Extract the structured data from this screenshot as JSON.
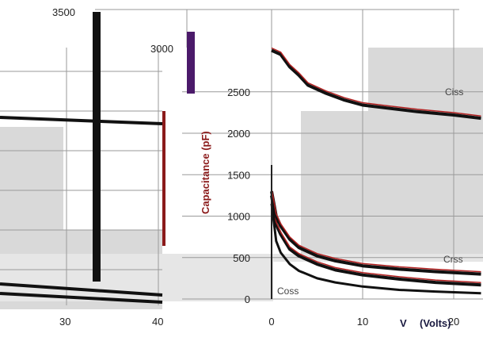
{
  "chart_data": [
    {
      "type": "line",
      "x": [
        0,
        20
      ],
      "x_visible_ticks": [
        "30",
        "40"
      ],
      "y_visible_ticks": [
        "3500",
        "3000"
      ],
      "xlabel": "",
      "ylabel": "",
      "title": "",
      "series": [
        {
          "values_at_x30": 2100,
          "values_at_x40": 2050
        },
        {
          "values_at_x30": 330,
          "values_at_x40": 60
        },
        {
          "values_at_x30": 270,
          "values_at_x40": 20
        }
      ]
    },
    {
      "type": "line",
      "title": "",
      "ylabel": "Capacitance (pF)",
      "xlabel": "V",
      "xlabel_unit": "(Volts)",
      "xlim": [
        0,
        23
      ],
      "ylim": [
        0,
        3000
      ],
      "x_ticks": [
        "0",
        "10",
        "20"
      ],
      "y_ticks": [
        "0",
        "500",
        "1000",
        "1500",
        "2000",
        "2500"
      ],
      "grid": true,
      "series": [
        {
          "name": "Ciss",
          "x": [
            0,
            1,
            2,
            3,
            4,
            6,
            8,
            10,
            13,
            16,
            20,
            23
          ],
          "values": [
            3000,
            2950,
            2800,
            2700,
            2580,
            2480,
            2400,
            2340,
            2300,
            2260,
            2220,
            2180
          ]
        },
        {
          "name": "Crss",
          "x": [
            0,
            0.5,
            1,
            2,
            3,
            5,
            7,
            10,
            14,
            18,
            23
          ],
          "values": [
            1250,
            900,
            780,
            600,
            520,
            420,
            350,
            290,
            240,
            200,
            170
          ]
        },
        {
          "name": "Coss",
          "x": [
            0,
            0.5,
            1,
            2,
            3,
            5,
            7,
            10,
            14,
            18,
            23
          ],
          "values": [
            1300,
            1000,
            880,
            720,
            620,
            520,
            460,
            400,
            360,
            330,
            300
          ]
        },
        {
          "name": "",
          "x": [
            0,
            0.5,
            1,
            2,
            3,
            5,
            7,
            10,
            14,
            18,
            23
          ],
          "values": [
            1150,
            700,
            560,
            420,
            340,
            250,
            200,
            150,
            110,
            90,
            70
          ]
        }
      ],
      "colors": {
        "ciss": "#1a1a1a",
        "coss": "#1a1a1a",
        "crss": "#1a1a1a",
        "accent": "#8b1a1a"
      }
    }
  ]
}
